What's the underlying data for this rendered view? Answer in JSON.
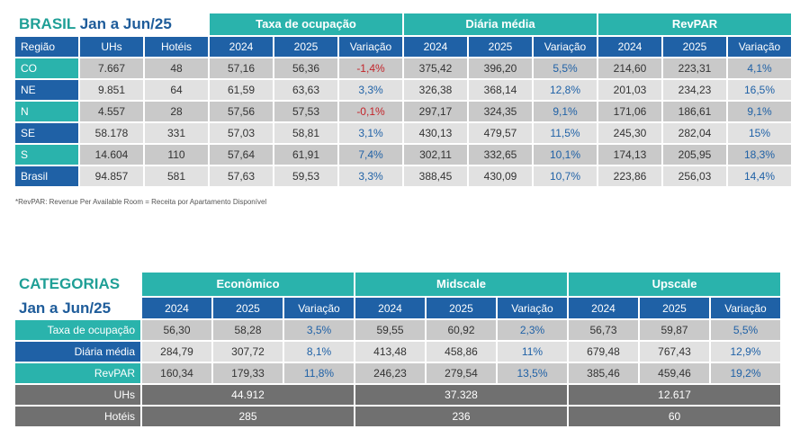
{
  "table1": {
    "title_main": "BRASIL",
    "title_period": "Jan a Jun/25",
    "groups": [
      "Taxa de ocupação",
      "Diária média",
      "RevPAR"
    ],
    "headers": [
      "Região",
      "UHs",
      "Hotéis",
      "2024",
      "2025",
      "Variação",
      "2024",
      "2025",
      "Variação",
      "2024",
      "2025",
      "Variação"
    ],
    "rows": [
      {
        "regiao": "CO",
        "uhs": "7.667",
        "hoteis": "48",
        "to24": "57,16",
        "to25": "56,36",
        "tovar": "-1,4%",
        "dm24": "375,42",
        "dm25": "396,20",
        "dmvar": "5,5%",
        "rv24": "214,60",
        "rv25": "223,31",
        "rvvar": "4,1%"
      },
      {
        "regiao": "NE",
        "uhs": "9.851",
        "hoteis": "64",
        "to24": "61,59",
        "to25": "63,63",
        "tovar": "3,3%",
        "dm24": "326,38",
        "dm25": "368,14",
        "dmvar": "12,8%",
        "rv24": "201,03",
        "rv25": "234,23",
        "rvvar": "16,5%"
      },
      {
        "regiao": "N",
        "uhs": "4.557",
        "hoteis": "28",
        "to24": "57,56",
        "to25": "57,53",
        "tovar": "-0,1%",
        "dm24": "297,17",
        "dm25": "324,35",
        "dmvar": "9,1%",
        "rv24": "171,06",
        "rv25": "186,61",
        "rvvar": "9,1%"
      },
      {
        "regiao": "SE",
        "uhs": "58.178",
        "hoteis": "331",
        "to24": "57,03",
        "to25": "58,81",
        "tovar": "3,1%",
        "dm24": "430,13",
        "dm25": "479,57",
        "dmvar": "11,5%",
        "rv24": "245,30",
        "rv25": "282,04",
        "rvvar": "15%"
      },
      {
        "regiao": "S",
        "uhs": "14.604",
        "hoteis": "110",
        "to24": "57,64",
        "to25": "61,91",
        "tovar": "7,4%",
        "dm24": "302,11",
        "dm25": "332,65",
        "dmvar": "10,1%",
        "rv24": "174,13",
        "rv25": "205,95",
        "rvvar": "18,3%"
      },
      {
        "regiao": "Brasil",
        "uhs": "94.857",
        "hoteis": "581",
        "to24": "57,63",
        "to25": "59,53",
        "tovar": "3,3%",
        "dm24": "388,45",
        "dm25": "430,09",
        "dmvar": "10,7%",
        "rv24": "223,86",
        "rv25": "256,03",
        "rvvar": "14,4%"
      }
    ],
    "footnote": "*RevPAR: Revenue Per Available Room = Receita por Apartamento Disponível"
  },
  "table2": {
    "title_main": "CATEGORIAS",
    "title_period": "Jan a Jun/25",
    "groups": [
      "Econômico",
      "Midscale",
      "Upscale"
    ],
    "headers": [
      "2024",
      "2025",
      "Variação",
      "2024",
      "2025",
      "Variação",
      "2024",
      "2025",
      "Variação"
    ],
    "rows": [
      {
        "label": "Taxa de ocupação",
        "e24": "56,30",
        "e25": "58,28",
        "evar": "3,5%",
        "m24": "59,55",
        "m25": "60,92",
        "mvar": "2,3%",
        "u24": "56,73",
        "u25": "59,87",
        "uvar": "5,5%"
      },
      {
        "label": "Diária média",
        "e24": "284,79",
        "e25": "307,72",
        "evar": "8,1%",
        "m24": "413,48",
        "m25": "458,86",
        "mvar": "11%",
        "u24": "679,48",
        "u25": "767,43",
        "uvar": "12,9%"
      },
      {
        "label": "RevPAR",
        "e24": "160,34",
        "e25": "179,33",
        "evar": "11,8%",
        "m24": "246,23",
        "m25": "279,54",
        "mvar": "13,5%",
        "u24": "385,46",
        "u25": "459,46",
        "uvar": "19,2%"
      }
    ],
    "totals": [
      {
        "label": "UHs",
        "eco": "44.912",
        "mid": "37.328",
        "up": "12.617"
      },
      {
        "label": "Hotéis",
        "eco": "285",
        "mid": "236",
        "up": "60"
      }
    ]
  },
  "colors": {
    "teal": "#2ab3ac",
    "blue": "#1f61a6",
    "gray_dark": "#c9c9c9",
    "gray_light": "#e1e1e1",
    "summary_gray": "#707070",
    "negative": "#c3242a",
    "positive": "#1f61a6"
  }
}
